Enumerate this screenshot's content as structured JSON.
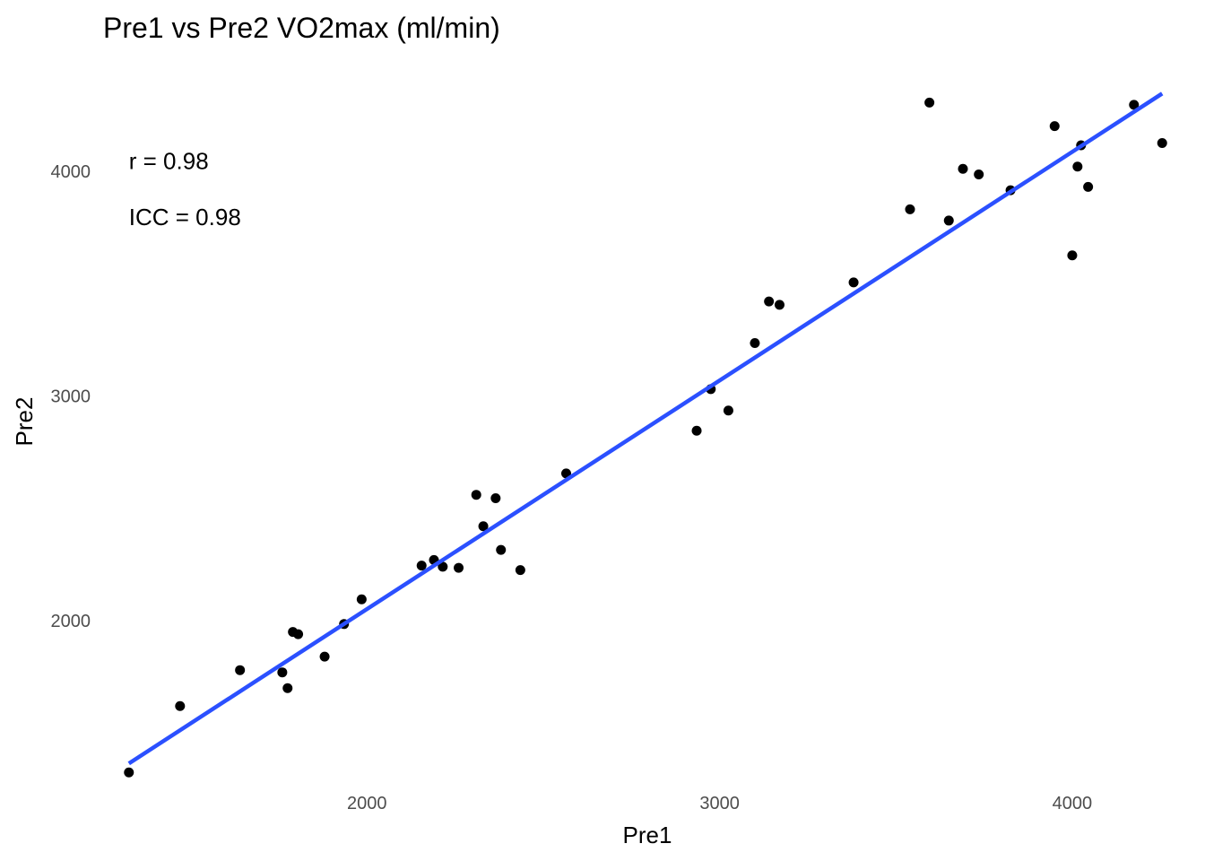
{
  "chart_data": {
    "type": "scatter",
    "title": "Pre1 vs Pre2 VO2max (ml/min)",
    "xlabel": "Pre1",
    "ylabel": "Pre2",
    "xlim": [
      1290,
      4290
    ],
    "ylim": [
      1290,
      4450
    ],
    "x_ticks": [
      2000,
      3000,
      4000
    ],
    "y_ticks": [
      2000,
      3000,
      4000
    ],
    "grid": false,
    "legend": "none",
    "annotations": [
      {
        "label": "r = 0.98",
        "x": 1325,
        "y": 4010
      },
      {
        "label": "ICC = 0.98",
        "x": 1325,
        "y": 3760
      }
    ],
    "points_color": "#000000",
    "fit_line": {
      "color": "#2b50ff",
      "x": [
        1325,
        4255
      ],
      "y": [
        1365,
        4345
      ]
    },
    "points": [
      {
        "x": 1325,
        "y": 1325
      },
      {
        "x": 1470,
        "y": 1620
      },
      {
        "x": 1640,
        "y": 1780
      },
      {
        "x": 1760,
        "y": 1770
      },
      {
        "x": 1775,
        "y": 1700
      },
      {
        "x": 1790,
        "y": 1950
      },
      {
        "x": 1805,
        "y": 1940
      },
      {
        "x": 1880,
        "y": 1840
      },
      {
        "x": 1935,
        "y": 1985
      },
      {
        "x": 1985,
        "y": 2095
      },
      {
        "x": 2155,
        "y": 2245
      },
      {
        "x": 2190,
        "y": 2270
      },
      {
        "x": 2215,
        "y": 2240
      },
      {
        "x": 2260,
        "y": 2235
      },
      {
        "x": 2310,
        "y": 2560
      },
      {
        "x": 2330,
        "y": 2420
      },
      {
        "x": 2365,
        "y": 2545
      },
      {
        "x": 2380,
        "y": 2315
      },
      {
        "x": 2435,
        "y": 2225
      },
      {
        "x": 2565,
        "y": 2655
      },
      {
        "x": 2935,
        "y": 2845
      },
      {
        "x": 2975,
        "y": 3030
      },
      {
        "x": 3025,
        "y": 2935
      },
      {
        "x": 3100,
        "y": 3235
      },
      {
        "x": 3140,
        "y": 3420
      },
      {
        "x": 3170,
        "y": 3405
      },
      {
        "x": 3380,
        "y": 3505
      },
      {
        "x": 3540,
        "y": 3830
      },
      {
        "x": 3595,
        "y": 4305
      },
      {
        "x": 3650,
        "y": 3780
      },
      {
        "x": 3690,
        "y": 4010
      },
      {
        "x": 3735,
        "y": 3985
      },
      {
        "x": 3825,
        "y": 3915
      },
      {
        "x": 3950,
        "y": 4200
      },
      {
        "x": 4000,
        "y": 3625
      },
      {
        "x": 4015,
        "y": 4020
      },
      {
        "x": 4025,
        "y": 4115
      },
      {
        "x": 4045,
        "y": 3930
      },
      {
        "x": 4175,
        "y": 4295
      },
      {
        "x": 4255,
        "y": 4125
      }
    ]
  }
}
